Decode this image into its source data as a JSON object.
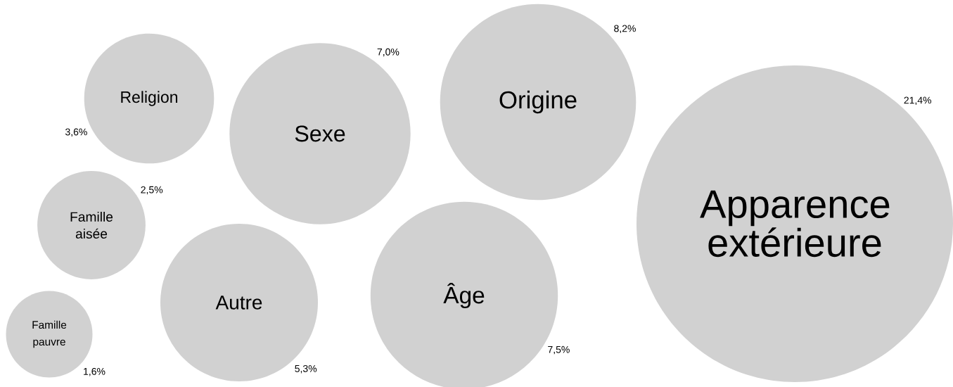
{
  "chart_data": {
    "type": "other",
    "categories": [
      "Religion",
      "Famille aisée",
      "Famille pauvre",
      "Sexe",
      "Autre",
      "Origine",
      "Âge",
      "Apparence extérieure"
    ],
    "values": [
      3.6,
      2.5,
      1.6,
      7.0,
      5.3,
      8.2,
      7.5,
      21.4
    ],
    "value_labels": [
      "3,6%",
      "2,5%",
      "1,6%",
      "7,0%",
      "5,3%",
      "8,2%",
      "7,5%",
      "21,4%"
    ]
  }
}
